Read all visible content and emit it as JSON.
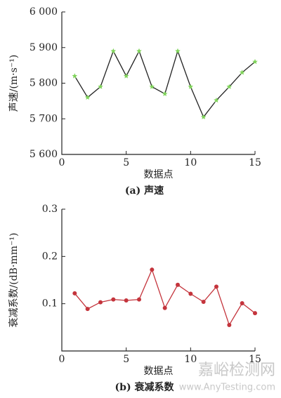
{
  "chart_data": [
    {
      "type": "line",
      "caption": "(a) 声速",
      "x_label": "数据点",
      "y_label": "声速/(m·s⁻¹)",
      "xlim": [
        0,
        15
      ],
      "xticks": [
        0,
        5,
        10,
        15
      ],
      "ylim": [
        5600,
        6000
      ],
      "yticks": [
        {
          "value": 5600,
          "label": "5 600"
        },
        {
          "value": 5700,
          "label": "5 700"
        },
        {
          "value": 5800,
          "label": "5 800"
        },
        {
          "value": 5900,
          "label": "5 900"
        },
        {
          "value": 6000,
          "label": "6 000"
        }
      ],
      "marker": "star",
      "color": "#222222",
      "marker_color": "#7fd35a",
      "x": [
        1,
        2,
        3,
        4,
        5,
        6,
        7,
        8,
        9,
        10,
        11,
        12,
        13,
        14,
        15
      ],
      "values": [
        5820,
        5760,
        5790,
        5890,
        5820,
        5890,
        5790,
        5770,
        5890,
        5790,
        5705,
        5752,
        5790,
        5830,
        5860
      ]
    },
    {
      "type": "line",
      "caption": "(b) 衰减系数",
      "x_label": "数据点",
      "y_label": "衰减系数/(dB·mm⁻¹)",
      "xlim": [
        0,
        15
      ],
      "xticks": [
        0,
        5,
        10,
        15
      ],
      "ylim": [
        0,
        0.3
      ],
      "yticks": [
        0.1,
        0.2,
        0.3
      ],
      "marker": "circle",
      "color": "#c4343c",
      "marker_color": "#c4343c",
      "x": [
        1,
        2,
        3,
        4,
        5,
        6,
        7,
        8,
        9,
        10,
        11,
        12,
        13,
        14,
        15
      ],
      "values": [
        0.122,
        0.089,
        0.103,
        0.109,
        0.107,
        0.109,
        0.172,
        0.091,
        0.14,
        0.121,
        0.104,
        0.136,
        0.055,
        0.101,
        0.08
      ]
    }
  ],
  "watermark": {
    "title": "嘉峪检测网",
    "url": "www.AnyTesting.com"
  }
}
